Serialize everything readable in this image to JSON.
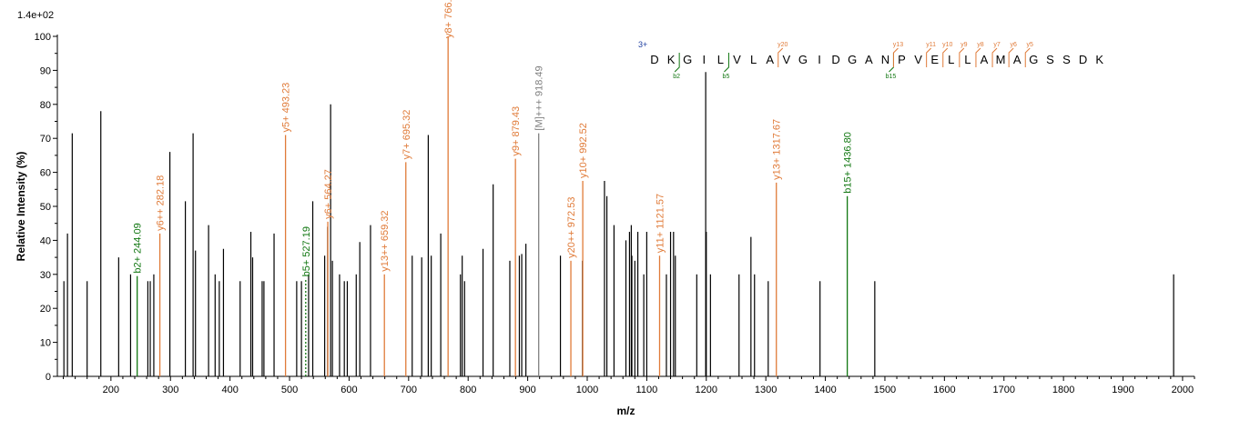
{
  "chart_data": {
    "type": "bar",
    "title": "",
    "xlabel": "m/z",
    "ylabel": "Relative   Intensity (%)",
    "scale_label": "1.4e+02",
    "xlim": [
      110,
      2020
    ],
    "ylim": [
      0,
      100
    ],
    "xticks": [
      200,
      300,
      400,
      500,
      600,
      700,
      800,
      900,
      1000,
      1100,
      1200,
      1300,
      1400,
      1500,
      1600,
      1700,
      1800,
      1900,
      2000
    ],
    "yticks": [
      0,
      10,
      20,
      30,
      40,
      50,
      60,
      70,
      80,
      90,
      100
    ],
    "colors": {
      "b_ion": "#117711",
      "y_ion": "#e07b39",
      "precursor": "#808080",
      "unassigned": "#000000",
      "charge": "#1f3fa0"
    },
    "series": [
      {
        "name": "unassigned",
        "peaks": [
          [
            121,
            28
          ],
          [
            127,
            42
          ],
          [
            135,
            71.5
          ],
          [
            160,
            28
          ],
          [
            183,
            78
          ],
          [
            213,
            35
          ],
          [
            233,
            30
          ],
          [
            262,
            28
          ],
          [
            266,
            28
          ],
          [
            272,
            30
          ],
          [
            299,
            66
          ],
          [
            325,
            51.5
          ],
          [
            338,
            71.5
          ],
          [
            342,
            37
          ],
          [
            364,
            44.5
          ],
          [
            375,
            30
          ],
          [
            382,
            28
          ],
          [
            389,
            37.5
          ],
          [
            417,
            28
          ],
          [
            435,
            42.5
          ],
          [
            438,
            35
          ],
          [
            454,
            28
          ],
          [
            457,
            28
          ],
          [
            474,
            42
          ],
          [
            512,
            28
          ],
          [
            520,
            28
          ],
          [
            532,
            30
          ],
          [
            539,
            51.5
          ],
          [
            559,
            35.5
          ],
          [
            564,
            44
          ],
          [
            569,
            80
          ],
          [
            572,
            34
          ],
          [
            584,
            30
          ],
          [
            592,
            28
          ],
          [
            597,
            28
          ],
          [
            612,
            30
          ],
          [
            618,
            39.5
          ],
          [
            636,
            44.5
          ],
          [
            706,
            35.5
          ],
          [
            722,
            35
          ],
          [
            733,
            71
          ],
          [
            738,
            35.5
          ],
          [
            754,
            42
          ],
          [
            787,
            30
          ],
          [
            790,
            35.5
          ],
          [
            794,
            28
          ],
          [
            825,
            37.5
          ],
          [
            842,
            56.5
          ],
          [
            870,
            34
          ],
          [
            886,
            35.5
          ],
          [
            890,
            36
          ],
          [
            897,
            39
          ],
          [
            955,
            35.5
          ],
          [
            992,
            34
          ],
          [
            1029,
            57.5
          ],
          [
            1033,
            53
          ],
          [
            1045,
            44.5
          ],
          [
            1065,
            40
          ],
          [
            1071,
            42.5
          ],
          [
            1074,
            44.5
          ],
          [
            1075,
            35.5
          ],
          [
            1080,
            34
          ],
          [
            1085,
            42.5
          ],
          [
            1095,
            30
          ],
          [
            1100,
            42.5
          ],
          [
            1133,
            30
          ],
          [
            1140,
            42.5
          ],
          [
            1145,
            42.5
          ],
          [
            1148,
            35.5
          ],
          [
            1184,
            30
          ],
          [
            1199,
            89.5
          ],
          [
            1200,
            42.5
          ],
          [
            1207,
            30
          ],
          [
            1255,
            30
          ],
          [
            1275,
            41
          ],
          [
            1281,
            30
          ],
          [
            1304,
            28
          ],
          [
            1391,
            28
          ],
          [
            1483,
            28
          ],
          [
            1985,
            30
          ]
        ]
      },
      {
        "name": "b ions",
        "peaks": [
          {
            "mz": 244.09,
            "y": 29.5,
            "label": "b2+ 244.09",
            "dashed": false
          },
          {
            "mz": 527.19,
            "y": 28.5,
            "label": "b5+ 527.19",
            "dashed": true
          },
          {
            "mz": 1436.8,
            "y": 53,
            "label": "b15+ 1436.80",
            "dashed": false
          }
        ]
      },
      {
        "name": "y ions",
        "peaks": [
          {
            "mz": 282.18,
            "y": 42,
            "label": "y6++ 282.18"
          },
          {
            "mz": 493.23,
            "y": 71,
            "label": "y5+ 493.23"
          },
          {
            "mz": 564.27,
            "y": 45.5,
            "label": "y6+ 564.27"
          },
          {
            "mz": 659.32,
            "y": 30,
            "label": "y13++ 659.32"
          },
          {
            "mz": 695.32,
            "y": 63,
            "label": "y7+ 695.32"
          },
          {
            "mz": 766.3,
            "y": 100,
            "label": "y8+ 766.3"
          },
          {
            "mz": 879.43,
            "y": 64,
            "label": "y9+ 879.43"
          },
          {
            "mz": 972.53,
            "y": 34,
            "label": "y20++ 972.53"
          },
          {
            "mz": 992.52,
            "y": 57.5,
            "label": "y10+ 992.52"
          },
          {
            "mz": 1121.57,
            "y": 35.5,
            "label": "y11+ 1121.57"
          },
          {
            "mz": 1317.67,
            "y": 57,
            "label": "y13+ 1317.67"
          }
        ]
      },
      {
        "name": "precursor",
        "peaks": [
          {
            "mz": 918.49,
            "y": 71.5,
            "label": "[M]+++ 918.49"
          }
        ]
      }
    ],
    "annotation": {
      "charge": "3+",
      "sequence": [
        "D",
        "K",
        "G",
        "I",
        "L",
        "V",
        "L",
        "A",
        "V",
        "G",
        "I",
        "D",
        "G",
        "A",
        "N",
        "P",
        "V",
        "E",
        "L",
        "L",
        "A",
        "M",
        "A",
        "G",
        "S",
        "S",
        "D",
        "K"
      ],
      "b_marks": [
        {
          "after": 2,
          "label": "b2"
        },
        {
          "after": 5,
          "label": "b5"
        },
        {
          "after": 15,
          "label": "b15"
        }
      ],
      "y_marks": [
        {
          "after": 8,
          "label": "y20"
        },
        {
          "after": 15,
          "label": "y13"
        },
        {
          "after": 17,
          "label": "y11"
        },
        {
          "after": 18,
          "label": "y10"
        },
        {
          "after": 19,
          "label": "y9"
        },
        {
          "after": 20,
          "label": "y8"
        },
        {
          "after": 21,
          "label": "y7"
        },
        {
          "after": 22,
          "label": "y6"
        },
        {
          "after": 23,
          "label": "y5"
        }
      ]
    }
  }
}
